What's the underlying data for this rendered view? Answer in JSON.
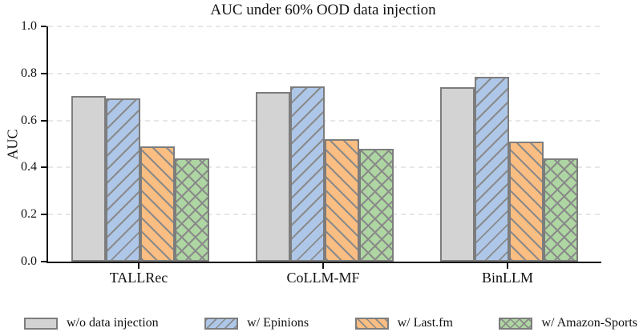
{
  "chart_data": {
    "type": "bar",
    "title": "AUC under 60% OOD data injection",
    "xlabel": "",
    "ylabel": "AUC",
    "ylim": [
      0.0,
      1.0
    ],
    "ytick_labels": [
      "0.0",
      "0.2",
      "0.4",
      "0.6",
      "0.8",
      "1.0"
    ],
    "grid": "horizontal-dashed",
    "legend_position": "bottom",
    "categories": [
      "TALLRec",
      "CoLLM-MF",
      "BinLLM"
    ],
    "series": [
      {
        "name": "w/o data injection",
        "values": [
          0.705,
          0.72,
          0.74
        ],
        "color": "#d3d3d3",
        "hatch": "none"
      },
      {
        "name": "w/ Epinions",
        "values": [
          0.695,
          0.745,
          0.785
        ],
        "color": "#aec7e8",
        "hatch": "/"
      },
      {
        "name": "w/ Last.fm",
        "values": [
          0.49,
          0.52,
          0.51
        ],
        "color": "#fabd82",
        "hatch": "\\"
      },
      {
        "name": "w/ Amazon-Sports",
        "values": [
          0.44,
          0.48,
          0.44
        ],
        "color": "#aed6a2",
        "hatch": "x"
      }
    ],
    "colors": {
      "edge": "#7d7d7d",
      "hatch": "#8a8a8a",
      "grid": "#e7e7e7",
      "axis": "#111111",
      "background": "#ffffff"
    }
  }
}
